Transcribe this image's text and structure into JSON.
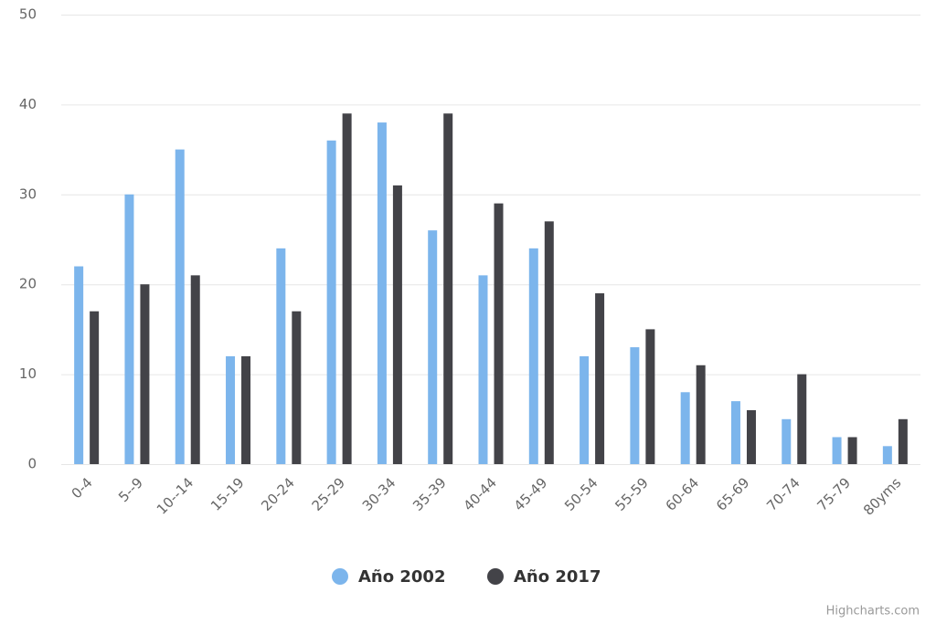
{
  "chart_data": {
    "type": "bar",
    "categories": [
      "0-4",
      "5--9",
      "10--14",
      "15-19",
      "20-24",
      "25-29",
      "30-34",
      "35-39",
      "40-44",
      "45-49",
      "50-54",
      "55-59",
      "60-64",
      "65-69",
      "70-74",
      "75-79",
      "80yms"
    ],
    "series": [
      {
        "name": "Año 2002",
        "color": "#7cb5ec",
        "values": [
          22,
          30,
          35,
          12,
          24,
          36,
          38,
          26,
          21,
          24,
          12,
          13,
          8,
          7,
          5,
          3,
          2
        ]
      },
      {
        "name": "Año 2017",
        "color": "#434348",
        "values": [
          17,
          20,
          21,
          12,
          17,
          39,
          31,
          39,
          29,
          27,
          19,
          15,
          11,
          6,
          10,
          3,
          5
        ]
      }
    ],
    "ylim": [
      0,
      50
    ],
    "yticks": [
      0,
      10,
      20,
      30,
      40,
      50
    ],
    "grid": true,
    "legend": "bottom",
    "credits": "Highcharts.com"
  }
}
